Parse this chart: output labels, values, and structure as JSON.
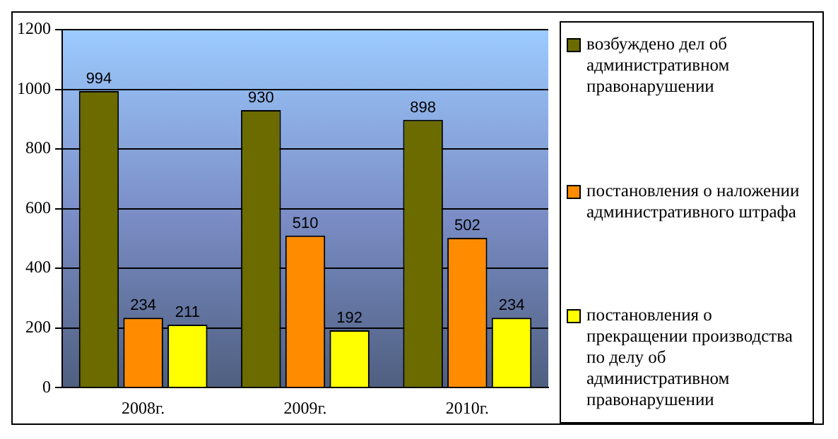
{
  "chart_data": {
    "type": "bar",
    "categories": [
      "2008г.",
      "2009г.",
      "2010г."
    ],
    "series": [
      {
        "name": "возбуждено дел об административном правонарушении",
        "color": "#6b6b00",
        "values": [
          994,
          930,
          898
        ]
      },
      {
        "name": "постановления о наложении административного штрафа",
        "color": "#ff8c00",
        "values": [
          234,
          510,
          502
        ]
      },
      {
        "name": "постановления о прекращении производства по делу об административном правонарушении",
        "color": "#ffff00",
        "values": [
          211,
          192,
          234
        ]
      }
    ],
    "ylim": [
      0,
      1200
    ],
    "yticks": [
      0,
      200,
      400,
      600,
      800,
      1000,
      1200
    ],
    "grid": "y",
    "legend": "right",
    "data_labels": true
  }
}
